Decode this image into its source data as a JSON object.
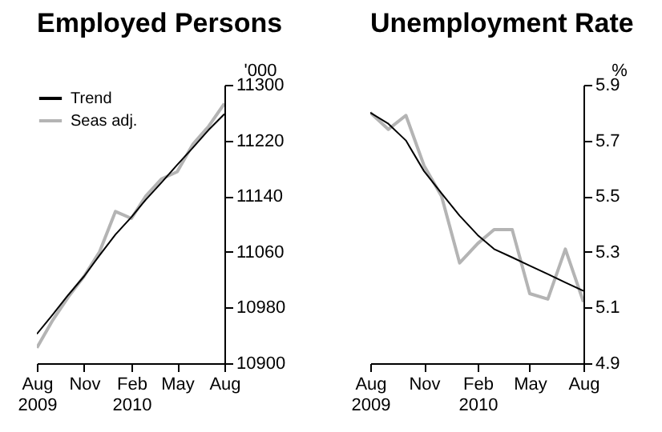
{
  "chart_data": [
    {
      "type": "line",
      "title": "Employed Persons",
      "ylabel": "'000",
      "legend": "top left",
      "x": [
        "2009-08",
        "2009-09",
        "2009-10",
        "2009-11",
        "2009-12",
        "2010-01",
        "2010-02",
        "2010-03",
        "2010-04",
        "2010-05",
        "2010-06",
        "2010-07",
        "2010-08"
      ],
      "xlim": [
        "2009-08",
        "2010-08"
      ],
      "xticks": [
        {
          "value": "2009-08",
          "label": "Aug 2009"
        },
        {
          "value": "2009-11",
          "label": "Nov"
        },
        {
          "value": "2010-02",
          "label": "Feb 2010"
        },
        {
          "value": "2010-05",
          "label": "May"
        },
        {
          "value": "2010-08",
          "label": "Aug"
        }
      ],
      "ylim": [
        10900,
        11300
      ],
      "yticks": [
        10900,
        10980,
        11060,
        11140,
        11220,
        11300
      ],
      "series": [
        {
          "name": "Trend",
          "color": "#000000",
          "values": [
            10942,
            10970,
            10998,
            11025,
            11055,
            11085,
            11110,
            11135,
            11160,
            11185,
            11210,
            11235,
            11258
          ]
        },
        {
          "name": "Seas adj.",
          "color": "#b4b4b4",
          "values": [
            10922,
            10962,
            10995,
            11025,
            11060,
            11118,
            11108,
            11140,
            11165,
            11175,
            11215,
            11240,
            11273
          ]
        }
      ]
    },
    {
      "type": "line",
      "title": "Unemployment Rate",
      "ylabel": "%",
      "legend": "top left",
      "x": [
        "2009-08",
        "2009-09",
        "2009-10",
        "2009-11",
        "2009-12",
        "2010-01",
        "2010-02",
        "2010-03",
        "2010-04",
        "2010-05",
        "2010-06",
        "2010-07",
        "2010-08"
      ],
      "xlim": [
        "2009-08",
        "2010-08"
      ],
      "xticks": [
        {
          "value": "2009-08",
          "label": "Aug 2009"
        },
        {
          "value": "2009-11",
          "label": "Nov"
        },
        {
          "value": "2010-02",
          "label": "Feb 2010"
        },
        {
          "value": "2010-05",
          "label": "May"
        },
        {
          "value": "2010-08",
          "label": "Aug"
        }
      ],
      "ylim": [
        4.9,
        5.9
      ],
      "yticks": [
        4.9,
        5.1,
        5.3,
        5.5,
        5.7,
        5.9
      ],
      "series": [
        {
          "name": "Trend",
          "color": "#000000",
          "values": [
            5.8,
            5.76,
            5.7,
            5.59,
            5.51,
            5.43,
            5.36,
            5.31,
            5.28,
            5.25,
            5.22,
            5.19,
            5.16
          ]
        },
        {
          "name": "Seas adj.",
          "color": "#b4b4b4",
          "values": [
            5.8,
            5.74,
            5.79,
            5.61,
            5.5,
            5.26,
            5.33,
            5.38,
            5.38,
            5.15,
            5.13,
            5.31,
            5.12
          ]
        }
      ]
    }
  ]
}
